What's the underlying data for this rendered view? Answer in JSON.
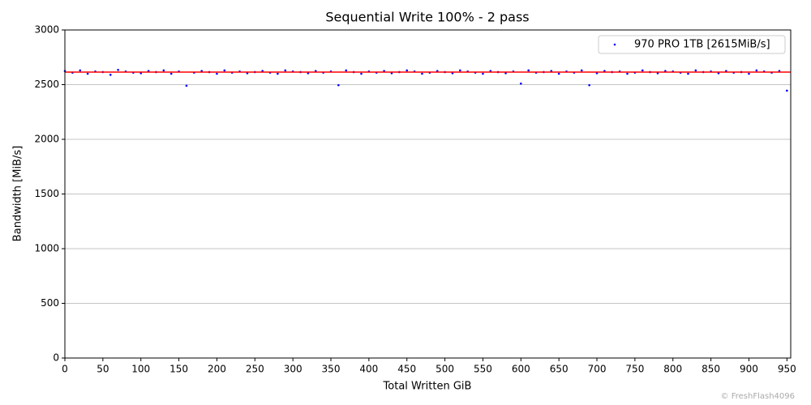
{
  "chart_data": {
    "type": "scatter",
    "title": "Sequential Write 100% - 2 pass",
    "x_label": "Total Written GiB",
    "y_label": "Bandwidth [MiB/s]",
    "watermark": "© FreshFlash4096",
    "xlim": [
      0,
      955
    ],
    "ylim": [
      0,
      3000
    ],
    "xticks": [
      0,
      50,
      100,
      150,
      200,
      250,
      300,
      350,
      400,
      450,
      500,
      550,
      600,
      650,
      700,
      750,
      800,
      850,
      900,
      950
    ],
    "yticks": [
      0,
      500,
      1000,
      1500,
      2000,
      2500,
      3000
    ],
    "grid": true,
    "legend": "upper right",
    "reference_line": {
      "value": 2615,
      "color": "#ff0000"
    },
    "series": [
      {
        "name": "970 PRO 1TB [2615MiB/s]",
        "color": "#0000ff",
        "x": [
          0,
          10,
          20,
          30,
          40,
          50,
          60,
          70,
          80,
          90,
          100,
          110,
          120,
          130,
          140,
          150,
          160,
          170,
          180,
          190,
          200,
          210,
          220,
          230,
          240,
          250,
          260,
          270,
          280,
          290,
          300,
          310,
          320,
          330,
          340,
          350,
          360,
          370,
          380,
          390,
          400,
          410,
          420,
          430,
          440,
          450,
          460,
          470,
          480,
          490,
          500,
          510,
          520,
          530,
          540,
          550,
          560,
          570,
          580,
          590,
          600,
          610,
          620,
          630,
          640,
          650,
          660,
          670,
          680,
          690,
          700,
          710,
          720,
          730,
          740,
          750,
          760,
          770,
          780,
          790,
          800,
          810,
          820,
          830,
          840,
          850,
          860,
          870,
          880,
          890,
          900,
          910,
          920,
          930,
          940,
          950
        ],
        "values": [
          2625,
          2610,
          2630,
          2600,
          2620,
          2615,
          2590,
          2635,
          2620,
          2610,
          2605,
          2625,
          2615,
          2630,
          2600,
          2620,
          2490,
          2610,
          2625,
          2615,
          2600,
          2630,
          2610,
          2620,
          2605,
          2615,
          2625,
          2610,
          2600,
          2630,
          2620,
          2615,
          2605,
          2625,
          2610,
          2620,
          2495,
          2630,
          2615,
          2600,
          2620,
          2610,
          2625,
          2605,
          2615,
          2630,
          2620,
          2600,
          2610,
          2625,
          2615,
          2605,
          2630,
          2620,
          2610,
          2600,
          2625,
          2615,
          2605,
          2620,
          2510,
          2630,
          2610,
          2615,
          2625,
          2600,
          2620,
          2610,
          2630,
          2495,
          2605,
          2625,
          2615,
          2620,
          2600,
          2610,
          2630,
          2615,
          2605,
          2625,
          2620,
          2610,
          2600,
          2630,
          2615,
          2620,
          2605,
          2625,
          2610,
          2615,
          2600,
          2630,
          2620,
          2610,
          2625,
          2445
        ]
      }
    ]
  }
}
